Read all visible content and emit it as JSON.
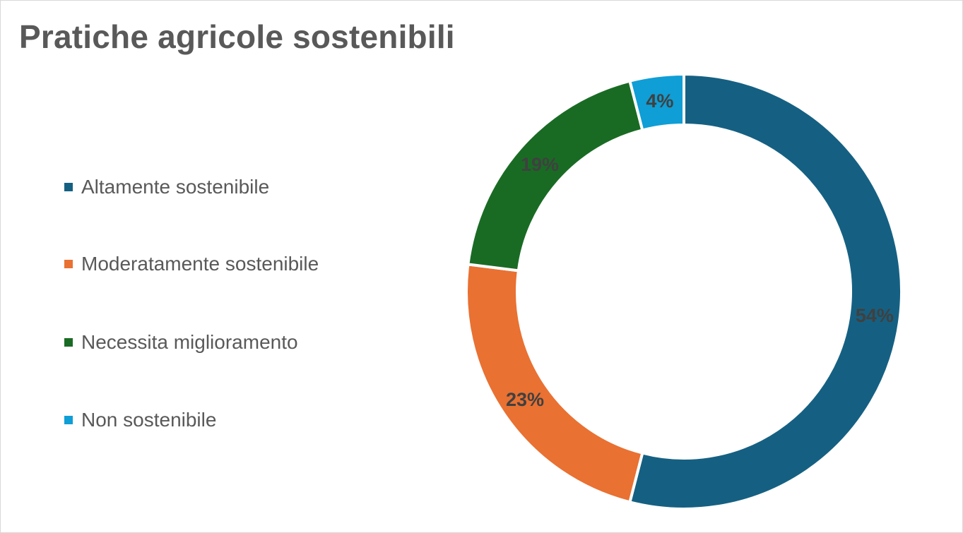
{
  "chart_data": {
    "type": "pie",
    "variant": "doughnut",
    "title": "Pratiche agricole sostenibili",
    "categories": [
      "Altamente sostenibile",
      "Moderatamente sostenibile",
      "Necessita miglioramento",
      "Non sostenibile"
    ],
    "values": [
      54,
      23,
      19,
      4
    ],
    "data_labels": [
      "54%",
      "23%",
      "19%",
      "4%"
    ],
    "colors": [
      "#156082",
      "#E97132",
      "#196B24",
      "#0F9ED5"
    ],
    "legend_position": "left"
  }
}
